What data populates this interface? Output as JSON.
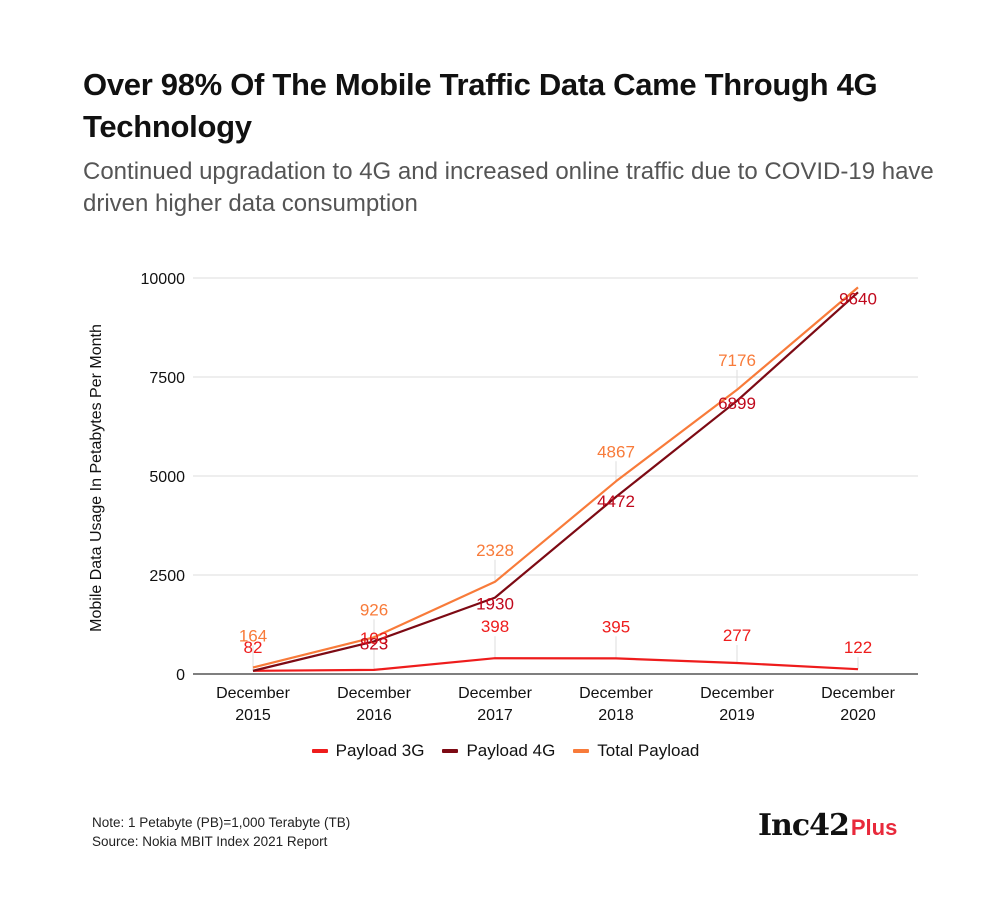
{
  "header": {
    "title": "Over 98% Of The Mobile Traffic Data Came Through 4G Technology",
    "subtitle": "Continued upgradation to 4G and increased online traffic due to COVID-19 have driven higher data consumption"
  },
  "chart_data": {
    "type": "line",
    "title": "Over 98% Of The Mobile Traffic Data Came Through 4G Technology",
    "subtitle": "Continued upgradation to 4G and increased online traffic due to COVID-19 have driven higher data consumption",
    "xlabel": "",
    "ylabel": "Mobile Data Usage In Petabytes Per Month",
    "categories": [
      [
        "December",
        "2015"
      ],
      [
        "December",
        "2016"
      ],
      [
        "December",
        "2017"
      ],
      [
        "December",
        "2018"
      ],
      [
        "December",
        "2019"
      ],
      [
        "December",
        "2020"
      ]
    ],
    "ylim": [
      0,
      10000
    ],
    "yticks": [
      0,
      2500,
      5000,
      7500,
      10000
    ],
    "grid": true,
    "legend_position": "bottom",
    "series": [
      {
        "name": "Payload 3G",
        "color": "#ee1c1c",
        "values": [
          82,
          103,
          398,
          395,
          277,
          122
        ],
        "labels": [
          "82",
          "103",
          "398",
          "395",
          "277",
          "122"
        ]
      },
      {
        "name": "Payload 4G",
        "color": "#7d0a14",
        "label_color": "#c0081c",
        "values": [
          82,
          823,
          1930,
          4472,
          6899,
          9640
        ],
        "labels": [
          null,
          "823",
          "1930",
          "4472",
          "6899",
          "9640"
        ]
      },
      {
        "name": "Total Payload",
        "color": "#f87b3a",
        "values": [
          164,
          926,
          2328,
          4867,
          7176,
          9762
        ],
        "labels": [
          "164",
          "926",
          "2328",
          "4867",
          "7176",
          null
        ]
      }
    ]
  },
  "footer": {
    "note": "Note: 1 Petabyte (PB)=1,000 Terabyte (TB)",
    "source": "Source: Nokia MBIT Index 2021 Report",
    "logo_main": "Inc42",
    "logo_plus": "Plus"
  }
}
